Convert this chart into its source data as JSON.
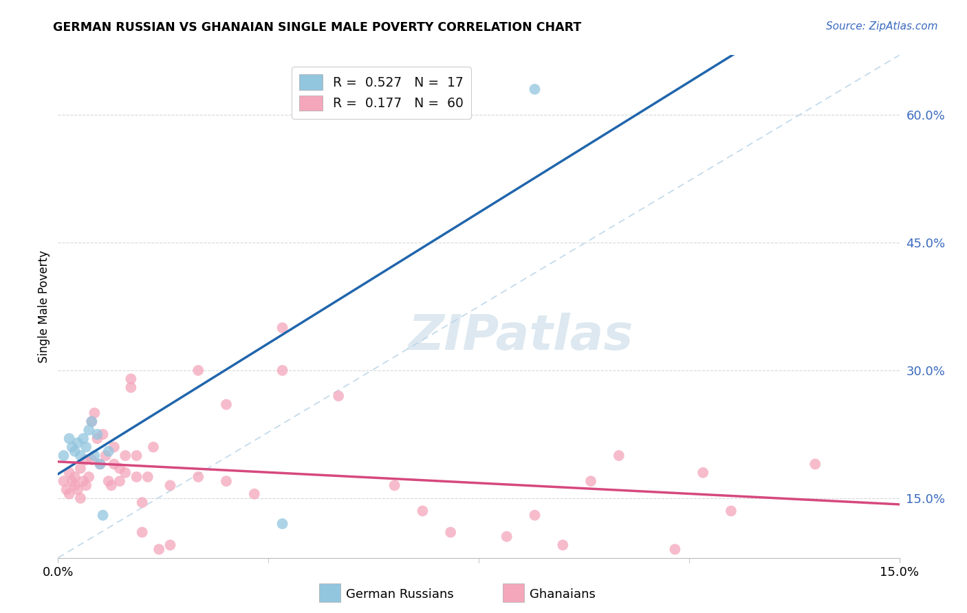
{
  "title": "GERMAN RUSSIAN VS GHANAIAN SINGLE MALE POVERTY CORRELATION CHART",
  "source": "Source: ZipAtlas.com",
  "ylabel": "Single Male Poverty",
  "y_ticks": [
    15.0,
    30.0,
    45.0,
    60.0
  ],
  "y_tick_labels": [
    "15.0%",
    "30.0%",
    "45.0%",
    "60.0%"
  ],
  "xlim": [
    0.0,
    15.0
  ],
  "ylim": [
    8.0,
    67.0
  ],
  "legend_blue_R": "0.527",
  "legend_blue_N": "17",
  "legend_pink_R": "0.177",
  "legend_pink_N": "60",
  "blue_color": "#92c5de",
  "pink_color": "#f4a6bb",
  "blue_line_color": "#2166ac",
  "pink_line_color": "#d6487e",
  "diagonal_color": "#b8d4e8",
  "german_russian_x": [
    0.1,
    0.2,
    0.25,
    0.3,
    0.35,
    0.4,
    0.45,
    0.5,
    0.55,
    0.6,
    0.65,
    0.7,
    0.75,
    0.8,
    0.9,
    4.0,
    8.5
  ],
  "german_russian_y": [
    20.0,
    22.0,
    21.0,
    20.5,
    21.5,
    20.0,
    22.0,
    21.0,
    23.0,
    24.0,
    20.0,
    22.5,
    19.0,
    13.0,
    20.5,
    12.0,
    63.0
  ],
  "ghanaian_x": [
    0.1,
    0.15,
    0.2,
    0.2,
    0.25,
    0.3,
    0.3,
    0.35,
    0.4,
    0.4,
    0.45,
    0.5,
    0.5,
    0.55,
    0.6,
    0.6,
    0.65,
    0.7,
    0.75,
    0.8,
    0.85,
    0.9,
    0.95,
    1.0,
    1.0,
    1.1,
    1.1,
    1.2,
    1.2,
    1.3,
    1.3,
    1.4,
    1.4,
    1.5,
    1.5,
    1.6,
    1.7,
    1.8,
    2.0,
    2.0,
    2.5,
    2.5,
    3.0,
    3.0,
    3.5,
    4.0,
    4.0,
    5.0,
    6.0,
    6.5,
    7.0,
    8.0,
    8.5,
    9.0,
    9.5,
    10.0,
    11.0,
    11.5,
    12.0,
    13.5
  ],
  "ghanaian_y": [
    17.0,
    16.0,
    15.5,
    18.0,
    17.0,
    16.5,
    17.5,
    16.0,
    15.0,
    18.5,
    17.0,
    16.5,
    19.5,
    17.5,
    24.0,
    19.5,
    25.0,
    22.0,
    19.0,
    22.5,
    20.0,
    17.0,
    16.5,
    21.0,
    19.0,
    18.5,
    17.0,
    20.0,
    18.0,
    29.0,
    28.0,
    20.0,
    17.5,
    14.5,
    11.0,
    17.5,
    21.0,
    9.0,
    16.5,
    9.5,
    30.0,
    17.5,
    26.0,
    17.0,
    15.5,
    35.0,
    30.0,
    27.0,
    16.5,
    13.5,
    11.0,
    10.5,
    13.0,
    9.5,
    17.0,
    20.0,
    9.0,
    18.0,
    13.5,
    19.0
  ]
}
